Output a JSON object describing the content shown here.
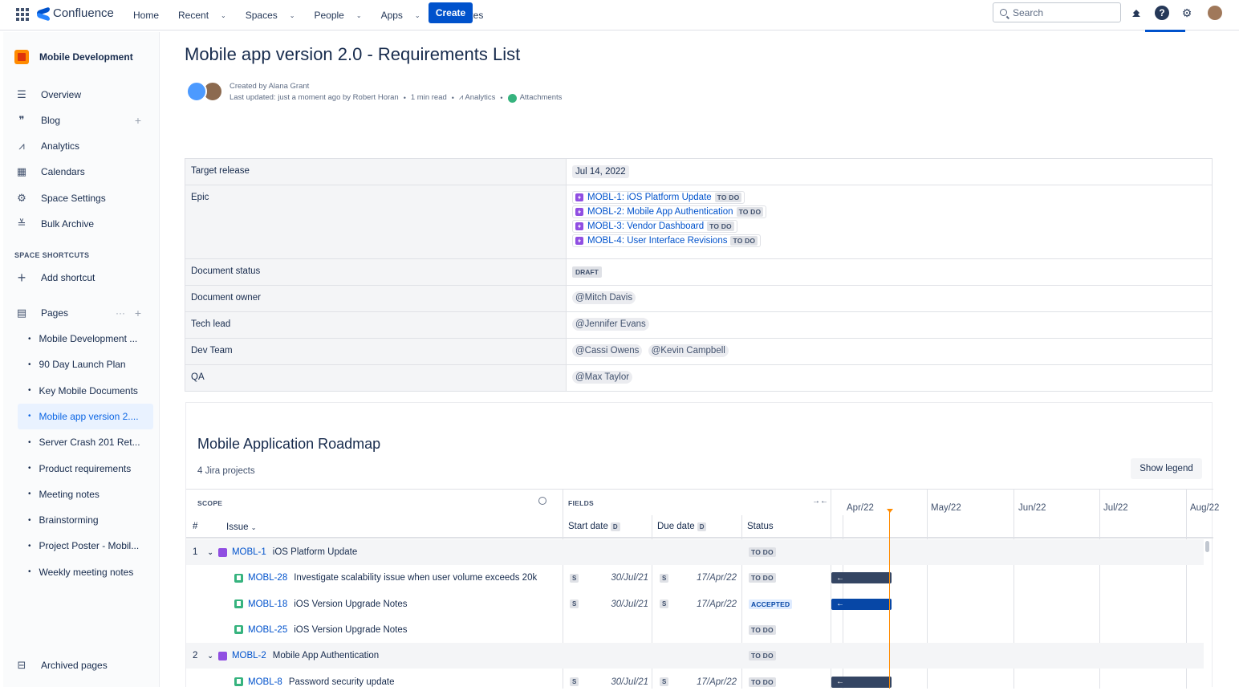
{
  "topbar": {
    "logo_text": "Confluence",
    "nav": [
      {
        "label": "Home",
        "dropdown": false
      },
      {
        "label": "Recent",
        "dropdown": true
      },
      {
        "label": "Spaces",
        "dropdown": true
      },
      {
        "label": "People",
        "dropdown": true
      },
      {
        "label": "Apps",
        "dropdown": true
      },
      {
        "label": "Templates",
        "dropdown": false
      }
    ],
    "create_label": "Create",
    "search_placeholder": "Search"
  },
  "sidebar": {
    "space_name": "Mobile Development",
    "items": [
      {
        "label": "Overview",
        "icon": "overview-icon"
      },
      {
        "label": "Blog",
        "icon": "quote-icon"
      },
      {
        "label": "Analytics",
        "icon": "analytics-icon"
      },
      {
        "label": "Calendars",
        "icon": "calendar-icon"
      },
      {
        "label": "Space Settings",
        "icon": "gear-icon"
      },
      {
        "label": "Bulk Archive",
        "icon": "archive-icon"
      }
    ],
    "shortcuts_heading": "SPACE SHORTCUTS",
    "add_shortcut": "Add shortcut",
    "pages_label": "Pages",
    "pages_more": "···",
    "tree": [
      "Mobile Development ...",
      "90 Day Launch Plan",
      "Key Mobile Documents",
      "Mobile app version 2....",
      "Server Crash 201 Ret...",
      "Product requirements",
      "Meeting notes",
      "Brainstorming",
      "Project Poster - Mobil...",
      "Weekly meeting notes"
    ],
    "archived_label": "Archived pages"
  },
  "page": {
    "title": "Mobile app version 2.0 - Requirements List",
    "created_by": "Created by Alana Grant",
    "last_updated": "Last updated: just a moment ago by Robert Horan",
    "read_time": "1 min read",
    "analytics": "Analytics",
    "attachments": "Attachments"
  },
  "properties": {
    "target_release": {
      "key": "Target release",
      "value": "Jul 14, 2022"
    },
    "epic": {
      "key": "Epic",
      "items": [
        {
          "label": "MOBL-1: iOS Platform Update",
          "status": "TO DO"
        },
        {
          "label": "MOBL-2: Mobile App Authentication",
          "status": "TO DO"
        },
        {
          "label": "MOBL-3: Vendor Dashboard",
          "status": "TO DO"
        },
        {
          "label": "MOBL-4: User Interface Revisions",
          "status": "TO DO"
        }
      ]
    },
    "status": {
      "key": "Document status",
      "value": "DRAFT"
    },
    "owner": {
      "key": "Document owner",
      "value": "@Mitch Davis"
    },
    "tech_lead": {
      "key": "Tech lead",
      "value": "@Jennifer Evans"
    },
    "dev_team": {
      "key": "Dev Team",
      "values": [
        "@Cassi Owens",
        "@Kevin Campbell"
      ]
    },
    "qa": {
      "key": "QA",
      "value": "@Max Taylor"
    }
  },
  "roadmap": {
    "title": "Mobile Application Roadmap",
    "subtitle": "4 Jira projects",
    "legend_button": "Show legend",
    "scope_label": "SCOPE",
    "fields_label": "FIELDS",
    "col_num": "#",
    "col_issue": "Issue",
    "col_start": "Start date",
    "col_due": "Due date",
    "col_status": "Status",
    "field_badge": "D",
    "months": [
      "Apr/22",
      "May/22",
      "Jun/22",
      "Jul/22",
      "Aug/22"
    ],
    "rows": [
      {
        "num": "1",
        "key": "MOBL-1",
        "summary": "iOS Platform Update",
        "type": "epic",
        "status": "TO DO",
        "start": "",
        "due": ""
      },
      {
        "num": "",
        "key": "MOBL-28",
        "summary": "Investigate scalability issue when user volume exceeds 20k",
        "type": "story",
        "status": "TO DO",
        "start": "30/Jul/21",
        "due": "17/Apr/22",
        "bar": "dark"
      },
      {
        "num": "",
        "key": "MOBL-18",
        "summary": "iOS Version Upgrade Notes",
        "type": "story",
        "status": "ACCEPTED",
        "start": "30/Jul/21",
        "due": "17/Apr/22",
        "bar": "blue"
      },
      {
        "num": "",
        "key": "MOBL-25",
        "summary": "iOS Version Upgrade Notes",
        "type": "story",
        "status": "TO DO",
        "start": "",
        "due": ""
      },
      {
        "num": "2",
        "key": "MOBL-2",
        "summary": "Mobile App Authentication",
        "type": "epic",
        "status": "TO DO",
        "start": "",
        "due": ""
      },
      {
        "num": "",
        "key": "MOBL-8",
        "summary": "Password security update",
        "type": "story",
        "status": "TO DO",
        "start": "30/Jul/21",
        "due": "17/Apr/22",
        "bar": "dark"
      }
    ],
    "source_badge": "S",
    "bar_arrow": "←"
  }
}
